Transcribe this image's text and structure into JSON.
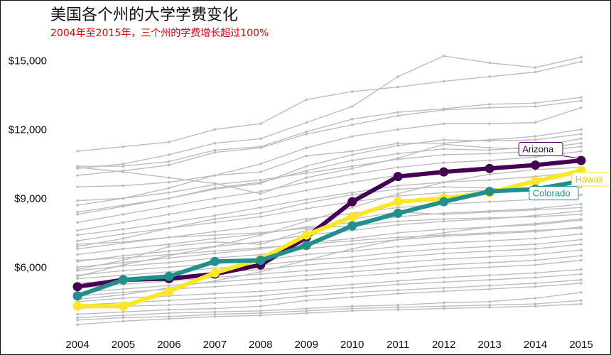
{
  "title": "美国各个州的大学学费变化",
  "subtitle": "2004年至2015年，三个州的学费增长超过100%",
  "colors": {
    "background": "#ffffff",
    "grey_line": "#bdbdbd",
    "subtitle": "#e8000b"
  },
  "chart_data": {
    "type": "line",
    "title": "美国各个州的大学学费变化",
    "subtitle": "2004年至2015年，三个州的学费增长超过100%",
    "xlabel": "",
    "ylabel": "",
    "x": [
      2004,
      2005,
      2006,
      2007,
      2008,
      2009,
      2010,
      2011,
      2012,
      2013,
      2014,
      2015
    ],
    "x_tick_labels": [
      "2004",
      "2005",
      "2006",
      "2007",
      "2008",
      "2009",
      "2010",
      "2011",
      "2012",
      "2013",
      "2014",
      "2015"
    ],
    "ylim": [
      4000,
      16300
    ],
    "y_ticks": [
      6000,
      9000,
      12000,
      15000
    ],
    "y_tick_labels": [
      "$6,000",
      "$9,000",
      "$12,000",
      "$15,000"
    ],
    "grid": false,
    "highlighted_series": [
      {
        "name": "Arizona",
        "color": "#440154",
        "values": [
          5150,
          5450,
          5500,
          5700,
          6100,
          7300,
          8850,
          9950,
          10150,
          10300,
          10450,
          10650
        ]
      },
      {
        "name": "Hawaii",
        "color": "#fde725",
        "values": [
          4300,
          4300,
          4950,
          5750,
          6350,
          7400,
          8200,
          8850,
          9000,
          9250,
          9750,
          10200
        ]
      },
      {
        "name": "Colorado",
        "color": "#21908c",
        "values": [
          4750,
          5450,
          5600,
          6250,
          6300,
          6950,
          7800,
          8350,
          8850,
          9300,
          9400,
          9750
        ]
      }
    ],
    "background_series": [
      {
        "values": [
          11050,
          11250,
          11450,
          12000,
          12250,
          13300,
          13650,
          13850,
          14100,
          14300,
          14500,
          14950
        ]
      },
      {
        "values": [
          10300,
          10500,
          10900,
          11400,
          11600,
          12300,
          13000,
          14300,
          15200,
          14900,
          14700,
          15150
        ]
      },
      {
        "values": [
          10400,
          10400,
          10600,
          11100,
          11250,
          11900,
          12450,
          12750,
          12900,
          13100,
          13150,
          13400
        ]
      },
      {
        "values": [
          10000,
          10200,
          10450,
          11000,
          11200,
          11800,
          12200,
          12600,
          12850,
          12950,
          13000,
          13250
        ]
      },
      {
        "values": [
          8700,
          9000,
          9450,
          10000,
          10500,
          11200,
          11700,
          12000,
          12250,
          12250,
          12300,
          12950
        ]
      },
      {
        "values": [
          9500,
          9550,
          9700,
          10000,
          10150,
          10850,
          11050,
          11400,
          11400,
          11550,
          11700,
          12000
        ]
      },
      {
        "values": [
          8300,
          8650,
          9000,
          9400,
          9650,
          10400,
          10900,
          11300,
          11550,
          11500,
          11550,
          11800
        ]
      },
      {
        "values": [
          8400,
          8700,
          9000,
          9450,
          9700,
          10200,
          10650,
          10950,
          11150,
          11100,
          11250,
          11600
        ]
      },
      {
        "values": [
          10350,
          10150,
          9900,
          9650,
          9200,
          9900,
          10300,
          10750,
          11350,
          11200,
          11150,
          11400
        ]
      },
      {
        "values": [
          8900,
          9000,
          9250,
          9600,
          9800,
          10100,
          10400,
          10700,
          10900,
          10950,
          11050,
          11250
        ]
      },
      {
        "values": [
          7950,
          8300,
          8650,
          9000,
          9300,
          9700,
          10050,
          10350,
          10550,
          10650,
          10800,
          11050
        ]
      },
      {
        "values": [
          7600,
          7950,
          8300,
          8650,
          8950,
          9350,
          9700,
          10000,
          10150,
          10300,
          10450,
          10700
        ]
      },
      {
        "values": [
          7400,
          7650,
          7950,
          8250,
          8600,
          8950,
          9250,
          9550,
          9700,
          9800,
          9950,
          10150
        ]
      },
      {
        "values": [
          7150,
          7450,
          7700,
          7950,
          8200,
          8550,
          8850,
          9100,
          9250,
          9350,
          9450,
          9650
        ]
      },
      {
        "values": [
          6800,
          7050,
          7300,
          7550,
          7800,
          8100,
          8350,
          8600,
          8750,
          8850,
          8950,
          9150
        ]
      },
      {
        "values": [
          6550,
          6800,
          7000,
          7250,
          7450,
          7750,
          7950,
          8200,
          8350,
          8450,
          8550,
          8750
        ]
      },
      {
        "values": [
          6250,
          6500,
          6700,
          6900,
          7100,
          7400,
          7600,
          7850,
          8000,
          8100,
          8250,
          8450
        ]
      },
      {
        "values": [
          6000,
          6200,
          6400,
          6600,
          6800,
          7050,
          7250,
          7500,
          7650,
          7750,
          7850,
          8050
        ]
      },
      {
        "values": [
          5850,
          6050,
          6200,
          6400,
          6550,
          6800,
          7000,
          7200,
          7350,
          7450,
          7550,
          7750
        ]
      },
      {
        "values": [
          5650,
          5850,
          6000,
          6150,
          6300,
          6550,
          6700,
          6900,
          7050,
          7150,
          7250,
          7450
        ]
      },
      {
        "values": [
          5500,
          5650,
          5800,
          5950,
          6100,
          6300,
          6450,
          6650,
          6800,
          6900,
          7000,
          7200
        ]
      },
      {
        "values": [
          5300,
          5450,
          5600,
          5750,
          5900,
          6100,
          6250,
          6450,
          6600,
          6700,
          6800,
          7000
        ]
      },
      {
        "values": [
          5100,
          5250,
          5400,
          5550,
          5700,
          5850,
          6000,
          6200,
          6350,
          6450,
          6550,
          6750
        ]
      },
      {
        "values": [
          4900,
          5050,
          5200,
          5350,
          5500,
          5650,
          5800,
          5950,
          6100,
          6200,
          6300,
          6500
        ]
      },
      {
        "values": [
          4750,
          4900,
          5050,
          5150,
          5300,
          5450,
          5600,
          5750,
          5900,
          6000,
          6100,
          6300
        ]
      },
      {
        "values": [
          4500,
          4650,
          4750,
          4850,
          4950,
          5100,
          5250,
          5400,
          5550,
          5650,
          5750,
          5900
        ]
      },
      {
        "values": [
          4350,
          4450,
          4550,
          4650,
          4750,
          4950,
          5100,
          5250,
          5350,
          5450,
          5550,
          5700
        ]
      },
      {
        "values": [
          4200,
          4300,
          4350,
          4450,
          4550,
          4750,
          4900,
          5000,
          5100,
          5200,
          5300,
          5450
        ]
      },
      {
        "values": [
          3950,
          4050,
          4150,
          4200,
          4300,
          4550,
          4700,
          4850,
          4950,
          5050,
          5150,
          5300
        ]
      },
      {
        "values": [
          3800,
          3900,
          4000,
          4050,
          4100,
          4200,
          4300,
          4350,
          4450,
          4500,
          4650,
          4900
        ]
      },
      {
        "values": [
          3700,
          3800,
          3850,
          3950,
          4000,
          4100,
          4200,
          4250,
          4300,
          4350,
          4400,
          4550
        ]
      },
      {
        "values": [
          3500,
          3650,
          3750,
          3850,
          3900,
          4000,
          4100,
          4150,
          4200,
          4250,
          4300,
          4400
        ]
      },
      {
        "values": [
          5900,
          6300,
          6900,
          7100,
          7000,
          7600,
          8100,
          8400,
          8300,
          8400,
          8500,
          8600
        ]
      },
      {
        "values": [
          6900,
          7250,
          7700,
          8100,
          8350,
          8800,
          9150,
          9400,
          9500,
          9450,
          9300,
          9500
        ]
      },
      {
        "values": [
          5600,
          6100,
          6500,
          6900,
          7400,
          8000,
          8600,
          9200,
          9700,
          10050,
          10250,
          10350
        ]
      },
      {
        "values": [
          7000,
          7100,
          7300,
          7400,
          7500,
          7700,
          7800,
          8000,
          8100,
          8150,
          8200,
          8300
        ]
      },
      {
        "values": [
          6300,
          6400,
          6550,
          6700,
          6850,
          7000,
          7150,
          7300,
          7400,
          7500,
          7600,
          7700
        ]
      },
      {
        "values": [
          4600,
          4800,
          5100,
          5400,
          5800,
          6300,
          6800,
          7200,
          7500,
          7750,
          7900,
          8100
        ]
      }
    ]
  }
}
